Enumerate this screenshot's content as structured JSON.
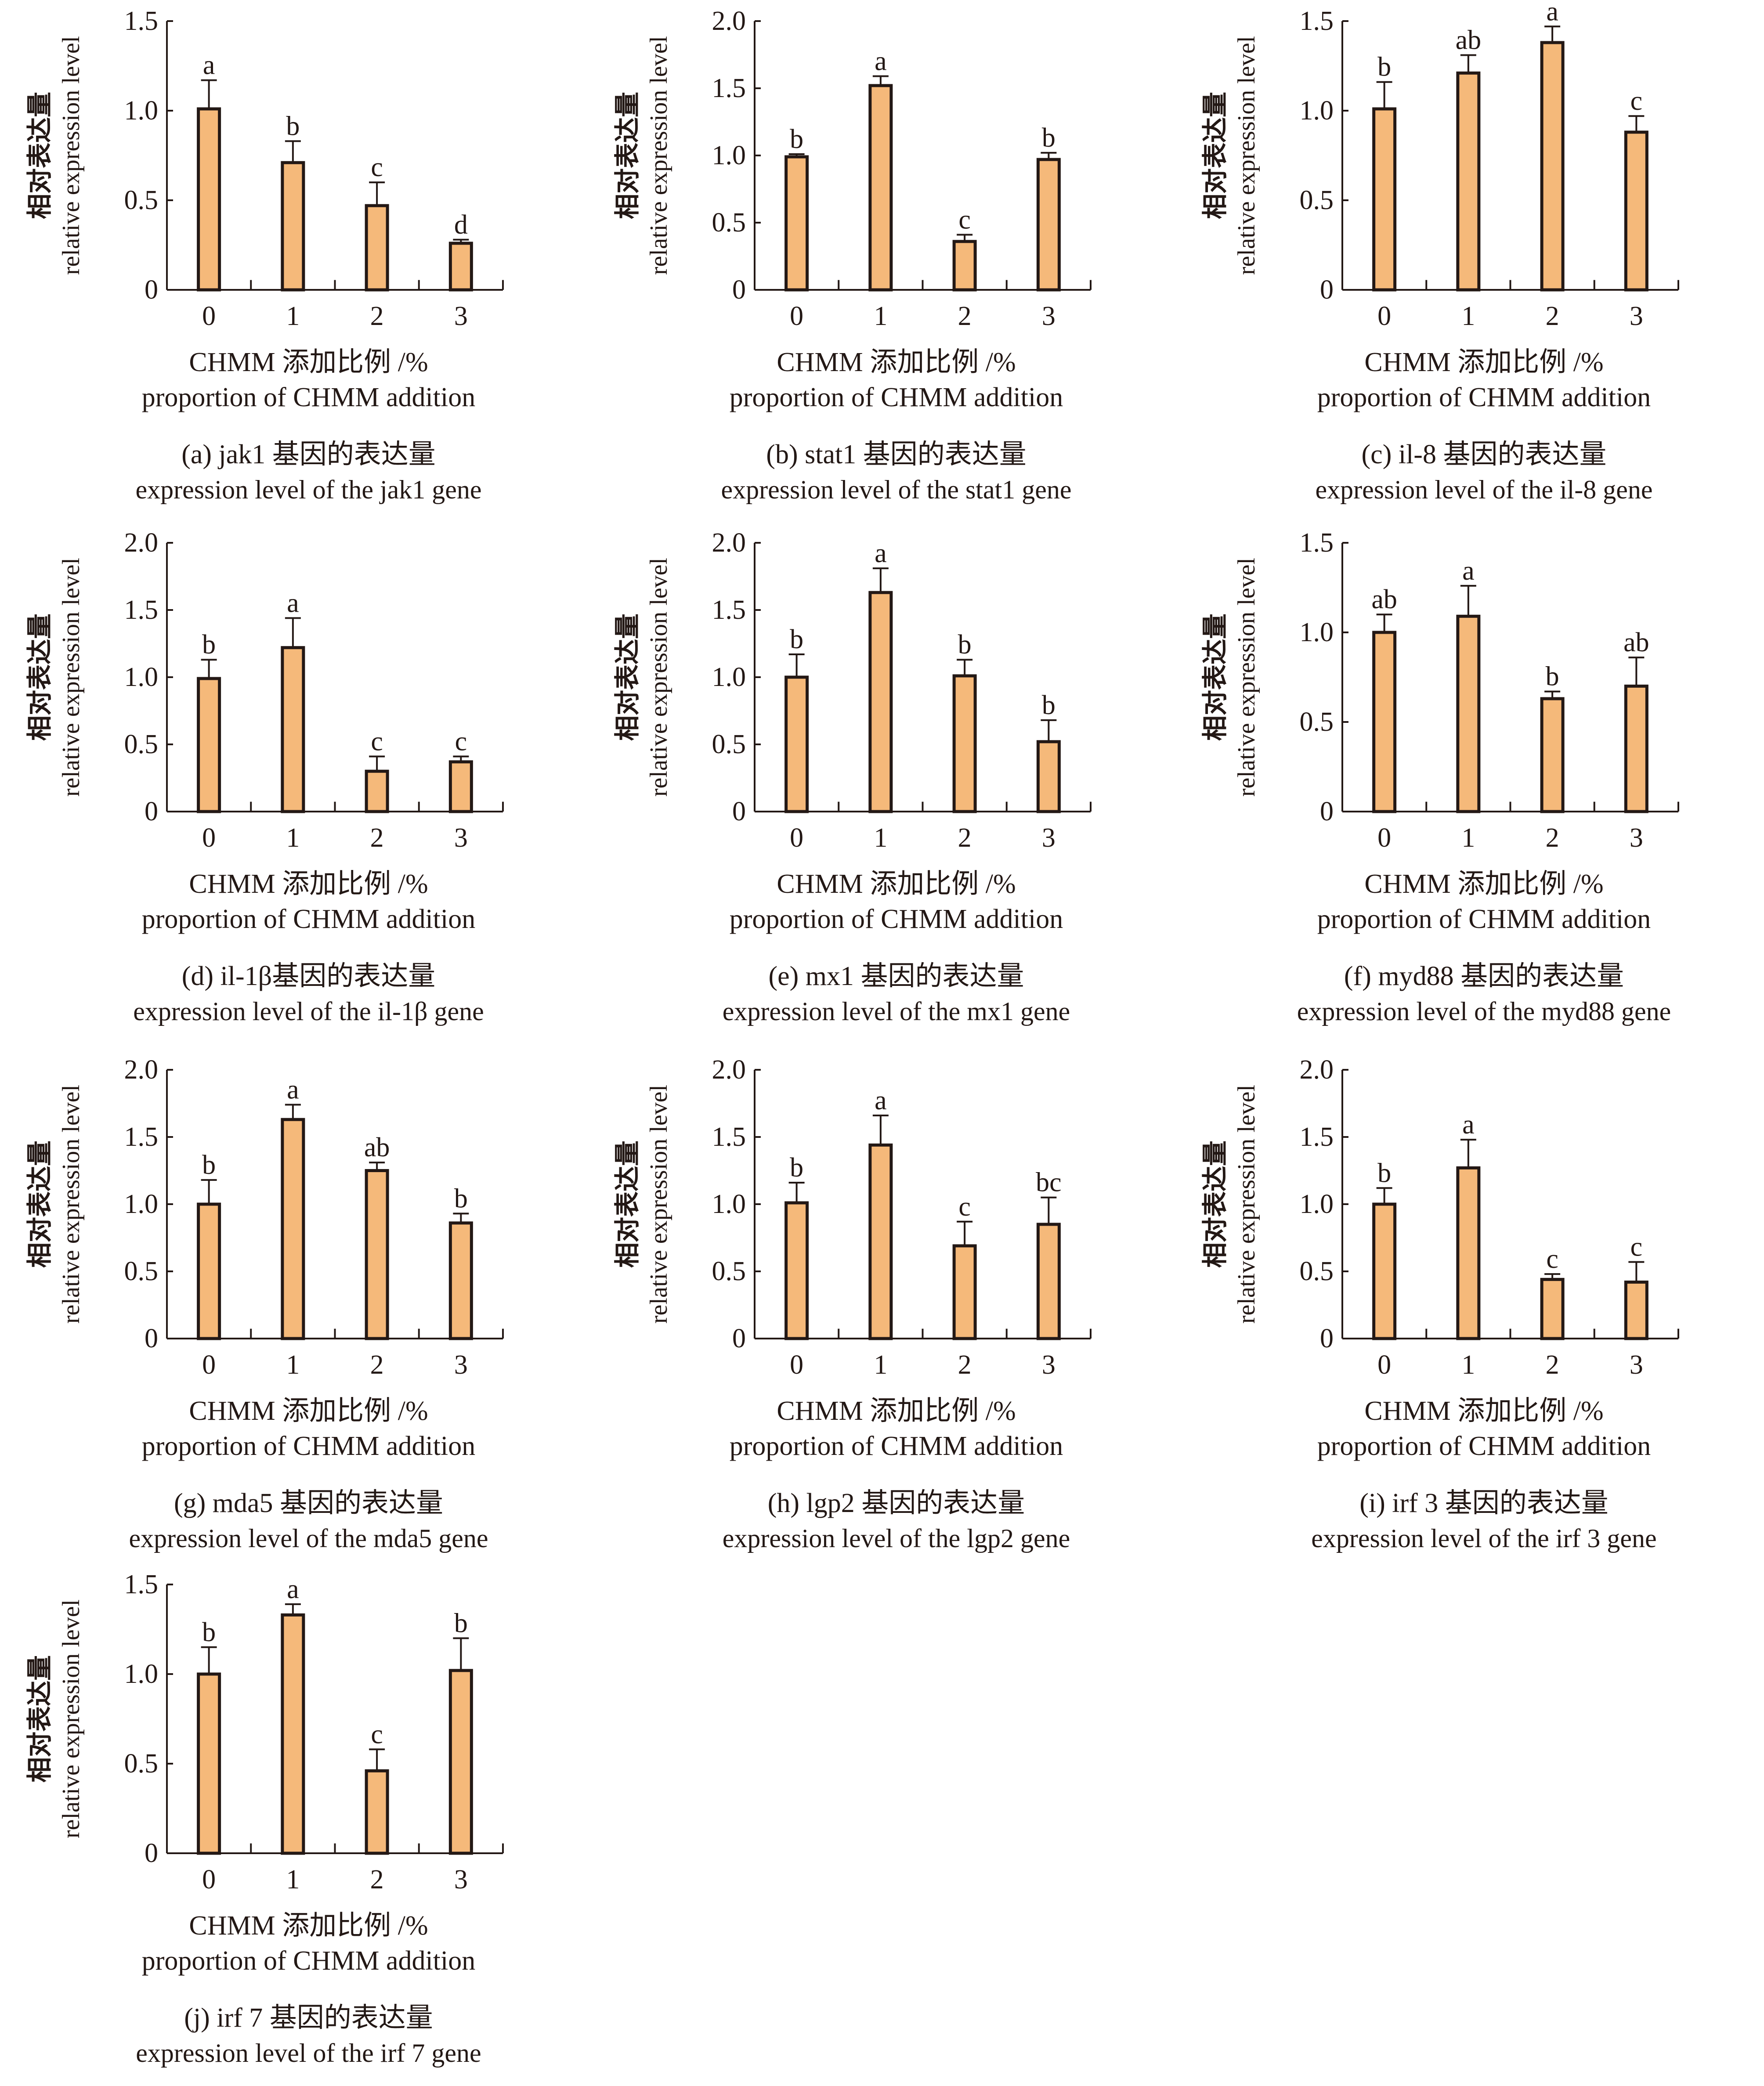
{
  "figure": {
    "x_axis_label_cn": "CHMM 添加比例 /%",
    "x_axis_label_en": "proportion of CHMM addition",
    "y_axis_label_cn": "相对表达量",
    "y_axis_label_en": "relative expression level",
    "bar_fill": "#F5B97A",
    "bar_stroke": "#231815"
  },
  "chart_data": [
    {
      "type": "bar",
      "panel": "a",
      "gene": "jak1",
      "title_cn": "(a) jak1 基因的表达量",
      "title_en": "expression level of the jak1 gene",
      "xlabel": "CHMM 添加比例 /% proportion of CHMM addition",
      "ylabel": "相对表达量 relative expression level",
      "categories": [
        "0",
        "1",
        "2",
        "3"
      ],
      "values": [
        1.01,
        0.71,
        0.47,
        0.26
      ],
      "error_upper": [
        1.17,
        0.83,
        0.6,
        0.28
      ],
      "significance": [
        "a",
        "b",
        "c",
        "d"
      ],
      "yticks": [
        "0",
        "0.5",
        "1.0",
        "1.5"
      ],
      "ylim": [
        0,
        1.5
      ]
    },
    {
      "type": "bar",
      "panel": "b",
      "gene": "stat1",
      "title_cn": "(b) stat1 基因的表达量",
      "title_en": "expression level of the stat1 gene",
      "xlabel": "CHMM 添加比例 /% proportion of CHMM addition",
      "ylabel": "相对表达量 relative expression level",
      "categories": [
        "0",
        "1",
        "2",
        "3"
      ],
      "values": [
        0.99,
        1.52,
        0.36,
        0.97
      ],
      "error_upper": [
        1.01,
        1.59,
        0.41,
        1.02
      ],
      "significance": [
        "b",
        "a",
        "c",
        "b"
      ],
      "yticks": [
        "0",
        "0.5",
        "1.0",
        "1.5",
        "2.0"
      ],
      "ylim": [
        0,
        2.0
      ]
    },
    {
      "type": "bar",
      "panel": "c",
      "gene": "il-8",
      "title_cn": "(c) il-8 基因的表达量",
      "title_en": "expression level of the il-8 gene",
      "xlabel": "CHMM 添加比例 /% proportion of CHMM addition",
      "ylabel": "相对表达量 relative expression level",
      "categories": [
        "0",
        "1",
        "2",
        "3"
      ],
      "values": [
        1.01,
        1.21,
        1.38,
        0.88
      ],
      "error_upper": [
        1.16,
        1.31,
        1.47,
        0.97
      ],
      "significance": [
        "b",
        "ab",
        "a",
        "c"
      ],
      "yticks": [
        "0",
        "0.5",
        "1.0",
        "1.5"
      ],
      "ylim": [
        0,
        1.5
      ]
    },
    {
      "type": "bar",
      "panel": "d",
      "gene": "il-1β",
      "title_cn": "(d) il-1β基因的表达量",
      "title_en": "expression level of the il-1β gene",
      "xlabel": "CHMM 添加比例 /% proportion of CHMM addition",
      "ylabel": "相对表达量 relative expression level",
      "categories": [
        "0",
        "1",
        "2",
        "3"
      ],
      "values": [
        0.99,
        1.22,
        0.3,
        0.37
      ],
      "error_upper": [
        1.13,
        1.44,
        0.41,
        0.41
      ],
      "significance": [
        "b",
        "a",
        "c",
        "c"
      ],
      "yticks": [
        "0",
        "0.5",
        "1.0",
        "1.5",
        "2.0"
      ],
      "ylim": [
        0,
        2.0
      ]
    },
    {
      "type": "bar",
      "panel": "e",
      "gene": "mx1",
      "title_cn": "(e) mx1 基因的表达量",
      "title_en": "expression level of the mx1 gene",
      "xlabel": "CHMM 添加比例 /% proportion of CHMM addition",
      "ylabel": "相对表达量 relative expression level",
      "categories": [
        "0",
        "1",
        "2",
        "3"
      ],
      "values": [
        1.0,
        1.63,
        1.01,
        0.52
      ],
      "error_upper": [
        1.17,
        1.81,
        1.13,
        0.68
      ],
      "significance": [
        "b",
        "a",
        "b",
        "b"
      ],
      "yticks": [
        "0",
        "0.5",
        "1.0",
        "1.5",
        "2.0"
      ],
      "ylim": [
        0,
        2.0
      ]
    },
    {
      "type": "bar",
      "panel": "f",
      "gene": "myd88",
      "title_cn": "(f) myd88 基因的表达量",
      "title_en": "expression level of the myd88 gene",
      "xlabel": "CHMM 添加比例 /% proportion of CHMM addition",
      "ylabel": "相对表达量 relative expression level",
      "categories": [
        "0",
        "1",
        "2",
        "3"
      ],
      "values": [
        1.0,
        1.09,
        0.63,
        0.7
      ],
      "error_upper": [
        1.1,
        1.26,
        0.67,
        0.86
      ],
      "significance": [
        "ab",
        "a",
        "b",
        "ab"
      ],
      "yticks": [
        "0",
        "0.5",
        "1.0",
        "1.5"
      ],
      "ylim": [
        0,
        1.5
      ]
    },
    {
      "type": "bar",
      "panel": "g",
      "gene": "mda5",
      "title_cn": "(g) mda5 基因的表达量",
      "title_en": "expression level of the mda5 gene",
      "xlabel": "CHMM 添加比例 /% proportion of CHMM addition",
      "ylabel": "相对表达量 relative expression level",
      "categories": [
        "0",
        "1",
        "2",
        "3"
      ],
      "values": [
        1.0,
        1.63,
        1.25,
        0.86
      ],
      "error_upper": [
        1.18,
        1.74,
        1.31,
        0.93
      ],
      "significance": [
        "b",
        "a",
        "ab",
        "b"
      ],
      "yticks": [
        "0",
        "0.5",
        "1.0",
        "1.5",
        "2.0"
      ],
      "ylim": [
        0,
        2.0
      ]
    },
    {
      "type": "bar",
      "panel": "h",
      "gene": "lgp2",
      "title_cn": "(h) lgp2 基因的表达量",
      "title_en": "expression level of the lgp2 gene",
      "xlabel": "CHMM 添加比例 /% proportion of CHMM addition",
      "ylabel": "相对表达量 relative expression level",
      "categories": [
        "0",
        "1",
        "2",
        "3"
      ],
      "values": [
        1.01,
        1.44,
        0.69,
        0.85
      ],
      "error_upper": [
        1.16,
        1.66,
        0.87,
        1.05
      ],
      "significance": [
        "b",
        "a",
        "c",
        "bc"
      ],
      "yticks": [
        "0",
        "0.5",
        "1.0",
        "1.5",
        "2.0"
      ],
      "ylim": [
        0,
        2.0
      ]
    },
    {
      "type": "bar",
      "panel": "i",
      "gene": "irf3",
      "title_cn": "(i) irf 3 基因的表达量",
      "title_en": "expression level of the irf 3 gene",
      "xlabel": "CHMM 添加比例 /% proportion of CHMM addition",
      "ylabel": "相对表达量 relative expression level",
      "categories": [
        "0",
        "1",
        "2",
        "3"
      ],
      "values": [
        1.0,
        1.27,
        0.44,
        0.42
      ],
      "error_upper": [
        1.12,
        1.48,
        0.48,
        0.57
      ],
      "significance": [
        "b",
        "a",
        "c",
        "c"
      ],
      "yticks": [
        "0",
        "0.5",
        "1.0",
        "1.5",
        "2.0"
      ],
      "ylim": [
        0,
        2.0
      ]
    },
    {
      "type": "bar",
      "panel": "j",
      "gene": "irf7",
      "title_cn": "(j) irf 7 基因的表达量",
      "title_en": "expression level of the irf 7 gene",
      "xlabel": "CHMM 添加比例 /% proportion of CHMM addition",
      "ylabel": "相对表达量 relative expression level",
      "categories": [
        "0",
        "1",
        "2",
        "3"
      ],
      "values": [
        1.0,
        1.33,
        0.46,
        1.02
      ],
      "error_upper": [
        1.15,
        1.39,
        0.58,
        1.2
      ],
      "significance": [
        "b",
        "a",
        "c",
        "b"
      ],
      "yticks": [
        "0",
        "0.5",
        "1.0",
        "1.5"
      ],
      "ylim": [
        0,
        1.5
      ]
    }
  ]
}
